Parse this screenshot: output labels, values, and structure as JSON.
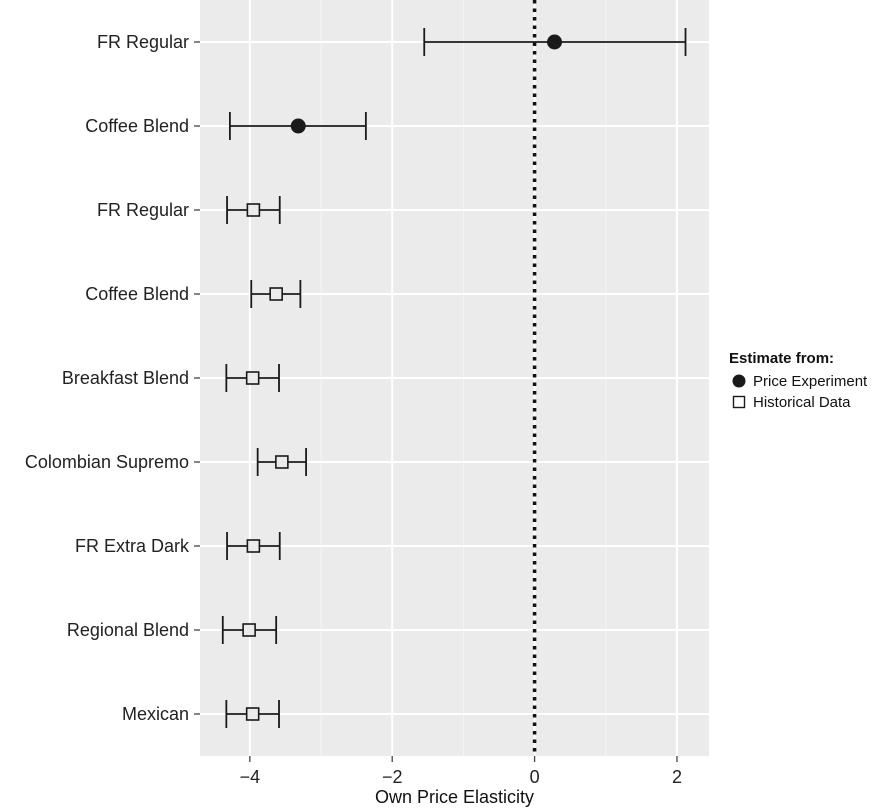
{
  "chart_data": {
    "type": "scatter",
    "subtype": "point-range (forest plot)",
    "xlabel": "Own Price Elasticity",
    "ylabel": "",
    "xlim": [
      -4.7,
      2.45
    ],
    "x_ticks": [
      -4,
      -2,
      0,
      2
    ],
    "x_tick_labels": [
      "−4",
      "−2",
      "0",
      "2"
    ],
    "reference_line": {
      "x": 0,
      "style": "dotted"
    },
    "grid": true,
    "legend": {
      "title": "Estimate from:",
      "position": "right",
      "entries": [
        {
          "name": "Price Experiment",
          "marker": "filled-circle"
        },
        {
          "name": "Historical Data",
          "marker": "open-square"
        }
      ]
    },
    "categories": [
      "FR Regular",
      "Coffee Blend",
      "FR Regular ",
      "Coffee Blend ",
      "Breakfast Blend",
      "Colombian Supremo",
      "FR Extra Dark",
      "Regional Blend",
      "Mexican"
    ],
    "points": [
      {
        "label": "FR Regular",
        "source": "Price Experiment",
        "estimate": 0.28,
        "lower": -1.55,
        "upper": 2.12
      },
      {
        "label": "Coffee Blend",
        "source": "Price Experiment",
        "estimate": -3.32,
        "lower": -4.28,
        "upper": -2.37
      },
      {
        "label": "FR Regular ",
        "source": "Historical Data",
        "estimate": -3.95,
        "lower": -4.32,
        "upper": -3.58
      },
      {
        "label": "Coffee Blend ",
        "source": "Historical Data",
        "estimate": -3.63,
        "lower": -3.98,
        "upper": -3.29
      },
      {
        "label": "Breakfast Blend",
        "source": "Historical Data",
        "estimate": -3.96,
        "lower": -4.33,
        "upper": -3.59
      },
      {
        "label": "Colombian Supremo",
        "source": "Historical Data",
        "estimate": -3.55,
        "lower": -3.89,
        "upper": -3.21
      },
      {
        "label": "FR Extra Dark",
        "source": "Historical Data",
        "estimate": -3.95,
        "lower": -4.32,
        "upper": -3.58
      },
      {
        "label": "Regional Blend",
        "source": "Historical Data",
        "estimate": -4.01,
        "lower": -4.38,
        "upper": -3.63
      },
      {
        "label": "Mexican",
        "source": "Historical Data",
        "estimate": -3.96,
        "lower": -4.33,
        "upper": -3.59
      }
    ],
    "colors": {
      "panel_background": "#ebebeb",
      "grid_major": "#ffffff",
      "grid_minor": "#f5f5f5",
      "mark": "#1a1a1a"
    }
  }
}
